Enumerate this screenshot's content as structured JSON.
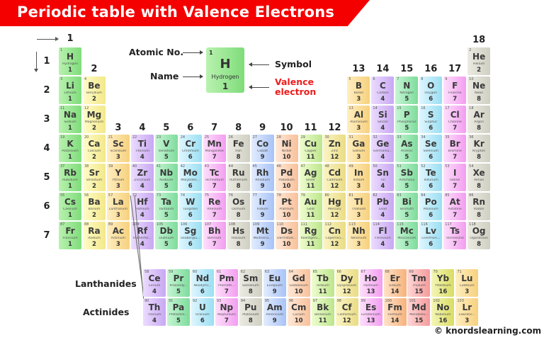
{
  "title": "Periodic table with Valence Electrons",
  "axis": {
    "groups": [
      "1",
      "2",
      "3",
      "4",
      "5",
      "6",
      "7",
      "8",
      "9",
      "10",
      "11",
      "12",
      "13",
      "14",
      "15",
      "16",
      "17",
      "18"
    ],
    "periods": [
      "1",
      "2",
      "3",
      "4",
      "5",
      "6",
      "7"
    ]
  },
  "legend": {
    "atomic_no_label": "Atomic No.",
    "name_label": "Name",
    "symbol_label": "Symbol",
    "valence_label_line1": "Valence",
    "valence_label_line2": "electron",
    "sample": {
      "num": "1",
      "sym": "H",
      "name": "Hydrogen",
      "val": "1"
    }
  },
  "fblock_labels": {
    "lanthanides": "Lanthanides",
    "actinides": "Actinides"
  },
  "copyright": "© knordslearning.com",
  "colors": {
    "title_banner": "#f40000",
    "valence_label": "#ee1c1c"
  },
  "elements": [
    {
      "num": "1",
      "sym": "H",
      "name": "Hydrogen",
      "val": "1",
      "row": 1,
      "col": 1,
      "color": "green"
    },
    {
      "num": "2",
      "sym": "He",
      "name": "Helium",
      "val": "2",
      "row": 1,
      "col": 18,
      "color": "gray"
    },
    {
      "num": "3",
      "sym": "Li",
      "name": "Lithium",
      "val": "1",
      "row": 2,
      "col": 1,
      "color": "green"
    },
    {
      "num": "4",
      "sym": "Be",
      "name": "Beryllium",
      "val": "2",
      "row": 2,
      "col": 2,
      "color": "yellow"
    },
    {
      "num": "5",
      "sym": "B",
      "name": "Boron",
      "val": "3",
      "row": 2,
      "col": 13,
      "color": "orangeY"
    },
    {
      "num": "6",
      "sym": "C",
      "name": "Carbon",
      "val": "4",
      "row": 2,
      "col": 14,
      "color": "purple"
    },
    {
      "num": "7",
      "sym": "N",
      "name": "Nitrogen",
      "val": "5",
      "row": 2,
      "col": 15,
      "color": "mint"
    },
    {
      "num": "8",
      "sym": "O",
      "name": "Oxygen",
      "val": "6",
      "row": 2,
      "col": 16,
      "color": "cyan"
    },
    {
      "num": "9",
      "sym": "F",
      "name": "Fluorine",
      "val": "7",
      "row": 2,
      "col": 17,
      "color": "pink"
    },
    {
      "num": "10",
      "sym": "Ne",
      "name": "Neon",
      "val": "8",
      "row": 2,
      "col": 18,
      "color": "gray"
    },
    {
      "num": "11",
      "sym": "Na",
      "name": "Sodium",
      "val": "1",
      "row": 3,
      "col": 1,
      "color": "green"
    },
    {
      "num": "12",
      "sym": "Mg",
      "name": "Magnesium",
      "val": "2",
      "row": 3,
      "col": 2,
      "color": "yellow"
    },
    {
      "num": "13",
      "sym": "Al",
      "name": "Aluminium",
      "val": "3",
      "row": 3,
      "col": 13,
      "color": "orangeY"
    },
    {
      "num": "14",
      "sym": "Si",
      "name": "Silicon",
      "val": "4",
      "row": 3,
      "col": 14,
      "color": "purple"
    },
    {
      "num": "15",
      "sym": "P",
      "name": "Phosphorus",
      "val": "5",
      "row": 3,
      "col": 15,
      "color": "mint"
    },
    {
      "num": "16",
      "sym": "S",
      "name": "Sulphur",
      "val": "6",
      "row": 3,
      "col": 16,
      "color": "cyan"
    },
    {
      "num": "17",
      "sym": "Cl",
      "name": "Chlorine",
      "val": "7",
      "row": 3,
      "col": 17,
      "color": "pink"
    },
    {
      "num": "18",
      "sym": "Ar",
      "name": "Argon",
      "val": "8",
      "row": 3,
      "col": 18,
      "color": "gray"
    },
    {
      "num": "19",
      "sym": "K",
      "name": "Potassium",
      "val": "1",
      "row": 4,
      "col": 1,
      "color": "green"
    },
    {
      "num": "20",
      "sym": "Ca",
      "name": "Calcium",
      "val": "2",
      "row": 4,
      "col": 2,
      "color": "yellow"
    },
    {
      "num": "21",
      "sym": "Sc",
      "name": "Scandium",
      "val": "3",
      "row": 4,
      "col": 3,
      "color": "orangeY"
    },
    {
      "num": "22",
      "sym": "Ti",
      "name": "Titanium",
      "val": "4",
      "row": 4,
      "col": 4,
      "color": "purple"
    },
    {
      "num": "23",
      "sym": "V",
      "name": "Vanadium",
      "val": "5",
      "row": 4,
      "col": 5,
      "color": "mint"
    },
    {
      "num": "24",
      "sym": "Cr",
      "name": "Chromium",
      "val": "6",
      "row": 4,
      "col": 6,
      "color": "cyan"
    },
    {
      "num": "25",
      "sym": "Mn",
      "name": "Manganese",
      "val": "7",
      "row": 4,
      "col": 7,
      "color": "pink"
    },
    {
      "num": "26",
      "sym": "Fe",
      "name": "Iron",
      "val": "8",
      "row": 4,
      "col": 8,
      "color": "gray"
    },
    {
      "num": "27",
      "sym": "Co",
      "name": "Cobalt",
      "val": "9",
      "row": 4,
      "col": 9,
      "color": "blue"
    },
    {
      "num": "28",
      "sym": "Ni",
      "name": "Nickel",
      "val": "10",
      "row": 4,
      "col": 10,
      "color": "peach"
    },
    {
      "num": "29",
      "sym": "Cu",
      "name": "Copper",
      "val": "11",
      "row": 4,
      "col": 11,
      "color": "lime"
    },
    {
      "num": "30",
      "sym": "Zn",
      "name": "Zinc",
      "val": "12",
      "row": 4,
      "col": 12,
      "color": "khaki"
    },
    {
      "num": "31",
      "sym": "Ga",
      "name": "Gallium",
      "val": "3",
      "row": 4,
      "col": 13,
      "color": "orangeY"
    },
    {
      "num": "32",
      "sym": "Ge",
      "name": "Germaniu...",
      "val": "4",
      "row": 4,
      "col": 14,
      "color": "purple"
    },
    {
      "num": "33",
      "sym": "As",
      "name": "Arsenic",
      "val": "5",
      "row": 4,
      "col": 15,
      "color": "mint"
    },
    {
      "num": "34",
      "sym": "Se",
      "name": "Selenium",
      "val": "6",
      "row": 4,
      "col": 16,
      "color": "cyan"
    },
    {
      "num": "35",
      "sym": "Br",
      "name": "Bromine",
      "val": "7",
      "row": 4,
      "col": 17,
      "color": "pink"
    },
    {
      "num": "36",
      "sym": "Kr",
      "name": "Krypton",
      "val": "8",
      "row": 4,
      "col": 18,
      "color": "gray"
    },
    {
      "num": "37",
      "sym": "Rb",
      "name": "Rubidium",
      "val": "1",
      "row": 5,
      "col": 1,
      "color": "green"
    },
    {
      "num": "38",
      "sym": "Sr",
      "name": "Strontium",
      "val": "2",
      "row": 5,
      "col": 2,
      "color": "yellow"
    },
    {
      "num": "39",
      "sym": "Y",
      "name": "Yttrium",
      "val": "3",
      "row": 5,
      "col": 3,
      "color": "orangeY"
    },
    {
      "num": "40",
      "sym": "Zr",
      "name": "Zirconium",
      "val": "4",
      "row": 5,
      "col": 4,
      "color": "purple"
    },
    {
      "num": "41",
      "sym": "Nb",
      "name": "Niobium",
      "val": "5",
      "row": 5,
      "col": 5,
      "color": "mint"
    },
    {
      "num": "42",
      "sym": "Mo",
      "name": "Molybden...",
      "val": "6",
      "row": 5,
      "col": 6,
      "color": "cyan"
    },
    {
      "num": "43",
      "sym": "Tc",
      "name": "Technetium",
      "val": "7",
      "row": 5,
      "col": 7,
      "color": "pink"
    },
    {
      "num": "44",
      "sym": "Ru",
      "name": "Ruthenium",
      "val": "8",
      "row": 5,
      "col": 8,
      "color": "gray"
    },
    {
      "num": "45",
      "sym": "Rh",
      "name": "Rhodium",
      "val": "9",
      "row": 5,
      "col": 9,
      "color": "blue"
    },
    {
      "num": "46",
      "sym": "Pd",
      "name": "Palladium",
      "val": "10",
      "row": 5,
      "col": 10,
      "color": "peach"
    },
    {
      "num": "47",
      "sym": "Ag",
      "name": "Silver",
      "val": "11",
      "row": 5,
      "col": 11,
      "color": "lime"
    },
    {
      "num": "48",
      "sym": "Cd",
      "name": "Cadmium",
      "val": "12",
      "row": 5,
      "col": 12,
      "color": "khaki"
    },
    {
      "num": "49",
      "sym": "In",
      "name": "Indium",
      "val": "3",
      "row": 5,
      "col": 13,
      "color": "orangeY"
    },
    {
      "num": "50",
      "sym": "Sn",
      "name": "Tin",
      "val": "4",
      "row": 5,
      "col": 14,
      "color": "purple"
    },
    {
      "num": "51",
      "sym": "Sb",
      "name": "Antimony",
      "val": "5",
      "row": 5,
      "col": 15,
      "color": "mint"
    },
    {
      "num": "52",
      "sym": "Te",
      "name": "Tellurium",
      "val": "6",
      "row": 5,
      "col": 16,
      "color": "cyan"
    },
    {
      "num": "53",
      "sym": "I",
      "name": "Iodine",
      "val": "7",
      "row": 5,
      "col": 17,
      "color": "pink"
    },
    {
      "num": "54",
      "sym": "Xe",
      "name": "Xenon",
      "val": "8",
      "row": 5,
      "col": 18,
      "color": "gray"
    },
    {
      "num": "55",
      "sym": "Cs",
      "name": "Caesium",
      "val": "1",
      "row": 6,
      "col": 1,
      "color": "green"
    },
    {
      "num": "56",
      "sym": "Ba",
      "name": "Barium",
      "val": "2",
      "row": 6,
      "col": 2,
      "color": "yellow"
    },
    {
      "num": "57",
      "sym": "La",
      "name": "Lanthanum",
      "val": "3",
      "row": 6,
      "col": 3,
      "color": "orangeY"
    },
    {
      "num": "72",
      "sym": "Hf",
      "name": "Hafnium",
      "val": "4",
      "row": 6,
      "col": 4,
      "color": "purple"
    },
    {
      "num": "73",
      "sym": "Ta",
      "name": "Tantalum",
      "val": "5",
      "row": 6,
      "col": 5,
      "color": "mint"
    },
    {
      "num": "74",
      "sym": "W",
      "name": "Tungsten",
      "val": "6",
      "row": 6,
      "col": 6,
      "color": "cyan"
    },
    {
      "num": "75",
      "sym": "Re",
      "name": "Rhenium",
      "val": "7",
      "row": 6,
      "col": 7,
      "color": "pink"
    },
    {
      "num": "76",
      "sym": "Os",
      "name": "Osmium",
      "val": "8",
      "row": 6,
      "col": 8,
      "color": "gray"
    },
    {
      "num": "77",
      "sym": "Ir",
      "name": "Iridium",
      "val": "9",
      "row": 6,
      "col": 9,
      "color": "blue"
    },
    {
      "num": "78",
      "sym": "Pt",
      "name": "Platinum",
      "val": "10",
      "row": 6,
      "col": 10,
      "color": "peach"
    },
    {
      "num": "79",
      "sym": "Au",
      "name": "Gold",
      "val": "11",
      "row": 6,
      "col": 11,
      "color": "lime"
    },
    {
      "num": "80",
      "sym": "Hg",
      "name": "Mercury",
      "val": "12",
      "row": 6,
      "col": 12,
      "color": "khaki"
    },
    {
      "num": "81",
      "sym": "Tl",
      "name": "Thallium",
      "val": "3",
      "row": 6,
      "col": 13,
      "color": "orangeY"
    },
    {
      "num": "82",
      "sym": "Pb",
      "name": "Lead",
      "val": "4",
      "row": 6,
      "col": 14,
      "color": "purple"
    },
    {
      "num": "83",
      "sym": "Bi",
      "name": "Bismuth",
      "val": "5",
      "row": 6,
      "col": 15,
      "color": "mint"
    },
    {
      "num": "84",
      "sym": "Po",
      "name": "Polonium",
      "val": "6",
      "row": 6,
      "col": 16,
      "color": "cyan"
    },
    {
      "num": "85",
      "sym": "At",
      "name": "Astatine",
      "val": "7",
      "row": 6,
      "col": 17,
      "color": "pink"
    },
    {
      "num": "86",
      "sym": "Rn",
      "name": "Radon",
      "val": "8",
      "row": 6,
      "col": 18,
      "color": "gray"
    },
    {
      "num": "87",
      "sym": "Fr",
      "name": "Francium",
      "val": "1",
      "row": 7,
      "col": 1,
      "color": "green"
    },
    {
      "num": "88",
      "sym": "Ra",
      "name": "Radium",
      "val": "2",
      "row": 7,
      "col": 2,
      "color": "yellow"
    },
    {
      "num": "89",
      "sym": "Ac",
      "name": "Actinium",
      "val": "3",
      "row": 7,
      "col": 3,
      "color": "orangeY"
    },
    {
      "num": "104",
      "sym": "Rf",
      "name": "Rutherfor...",
      "val": "4",
      "row": 7,
      "col": 4,
      "color": "purple"
    },
    {
      "num": "105",
      "sym": "Db",
      "name": "Dubnium",
      "val": "5",
      "row": 7,
      "col": 5,
      "color": "mint"
    },
    {
      "num": "106",
      "sym": "Sg",
      "name": "Seaborgiu...",
      "val": "6",
      "row": 7,
      "col": 6,
      "color": "cyan"
    },
    {
      "num": "107",
      "sym": "Bh",
      "name": "Bohrium",
      "val": "7",
      "row": 7,
      "col": 7,
      "color": "pink"
    },
    {
      "num": "108",
      "sym": "Hs",
      "name": "Hassium",
      "val": "8",
      "row": 7,
      "col": 8,
      "color": "gray"
    },
    {
      "num": "109",
      "sym": "Mt",
      "name": "Meitneriu...",
      "val": "9",
      "row": 7,
      "col": 9,
      "color": "blue"
    },
    {
      "num": "110",
      "sym": "Ds",
      "name": "Darmstad...",
      "val": "10",
      "row": 7,
      "col": 10,
      "color": "peach"
    },
    {
      "num": "111",
      "sym": "Rg",
      "name": "Roentgeni...",
      "val": "11",
      "row": 7,
      "col": 11,
      "color": "lime"
    },
    {
      "num": "112",
      "sym": "Cn",
      "name": "Copernici...",
      "val": "12",
      "row": 7,
      "col": 12,
      "color": "khaki"
    },
    {
      "num": "113",
      "sym": "Nh",
      "name": "Nihonium",
      "val": "3",
      "row": 7,
      "col": 13,
      "color": "orangeY"
    },
    {
      "num": "114",
      "sym": "Fl",
      "name": "Flerovium",
      "val": "4",
      "row": 7,
      "col": 14,
      "color": "purple"
    },
    {
      "num": "115",
      "sym": "Mc",
      "name": "Moscovium",
      "val": "5",
      "row": 7,
      "col": 15,
      "color": "mint"
    },
    {
      "num": "116",
      "sym": "Lv",
      "name": "Livermori...",
      "val": "6",
      "row": 7,
      "col": 16,
      "color": "cyan"
    },
    {
      "num": "117",
      "sym": "Ts",
      "name": "Tennessine",
      "val": "7",
      "row": 7,
      "col": 17,
      "color": "pink"
    },
    {
      "num": "118",
      "sym": "Og",
      "name": "Oganesson",
      "val": "8",
      "row": 7,
      "col": 18,
      "color": "gray"
    }
  ],
  "lanthanides": [
    {
      "num": "58",
      "sym": "Ce",
      "name": "Cerium",
      "val": "4",
      "color": "purple"
    },
    {
      "num": "59",
      "sym": "Pr",
      "name": "Praseody...",
      "val": "5",
      "color": "mint"
    },
    {
      "num": "60",
      "sym": "Nd",
      "name": "Neodymi...",
      "val": "6",
      "color": "cyan"
    },
    {
      "num": "61",
      "sym": "Pm",
      "name": "Prometh...",
      "val": "7",
      "color": "pink"
    },
    {
      "num": "62",
      "sym": "Sm",
      "name": "Samarium",
      "val": "8",
      "color": "gray"
    },
    {
      "num": "63",
      "sym": "Eu",
      "name": "Europium",
      "val": "9",
      "color": "blue"
    },
    {
      "num": "64",
      "sym": "Gd",
      "name": "Gadolinium",
      "val": "10",
      "color": "peach"
    },
    {
      "num": "65",
      "sym": "Tb",
      "name": "Terbium",
      "val": "11",
      "color": "lime"
    },
    {
      "num": "66",
      "sym": "Dy",
      "name": "Dysprosium",
      "val": "12",
      "color": "khaki"
    },
    {
      "num": "67",
      "sym": "Ho",
      "name": "Holmium",
      "val": "13",
      "color": "pink"
    },
    {
      "num": "68",
      "sym": "Er",
      "name": "Erbium",
      "val": "14",
      "color": "orange"
    },
    {
      "num": "69",
      "sym": "Tm",
      "name": "Thulium",
      "val": "15",
      "color": "red"
    },
    {
      "num": "70",
      "sym": "Yb",
      "name": "Ytterbium",
      "val": "16",
      "color": "olive"
    },
    {
      "num": "71",
      "sym": "Lu",
      "name": "Lutetium",
      "val": "3",
      "color": "orangeY"
    }
  ],
  "actinides": [
    {
      "num": "90",
      "sym": "Th",
      "name": "Thorium",
      "val": "4",
      "color": "purple"
    },
    {
      "num": "91",
      "sym": "Pa",
      "name": "Protactini...",
      "val": "5",
      "color": "mint"
    },
    {
      "num": "92",
      "sym": "U",
      "name": "Uranium",
      "val": "6",
      "color": "cyan"
    },
    {
      "num": "93",
      "sym": "Np",
      "name": "Neptunium",
      "val": "7",
      "color": "pink"
    },
    {
      "num": "94",
      "sym": "Pu",
      "name": "Plutonium",
      "val": "8",
      "color": "gray"
    },
    {
      "num": "95",
      "sym": "Am",
      "name": "Americium",
      "val": "9",
      "color": "blue"
    },
    {
      "num": "96",
      "sym": "Cm",
      "name": "Curium",
      "val": "10",
      "color": "peach"
    },
    {
      "num": "97",
      "sym": "Bk",
      "name": "Berkelium",
      "val": "11",
      "color": "lime"
    },
    {
      "num": "98",
      "sym": "Cf",
      "name": "Californium",
      "val": "12",
      "color": "khaki"
    },
    {
      "num": "99",
      "sym": "Es",
      "name": "Einsteinium",
      "val": "13",
      "color": "pink"
    },
    {
      "num": "100",
      "sym": "Fm",
      "name": "Fermium",
      "val": "14",
      "color": "orange"
    },
    {
      "num": "101",
      "sym": "Md",
      "name": "Mendelev...",
      "val": "15",
      "color": "red"
    },
    {
      "num": "102",
      "sym": "No",
      "name": "Nobelium",
      "val": "16",
      "color": "olive"
    },
    {
      "num": "103",
      "sym": "Lr",
      "name": "Lawrenc...",
      "val": "3",
      "color": "orangeY"
    }
  ]
}
